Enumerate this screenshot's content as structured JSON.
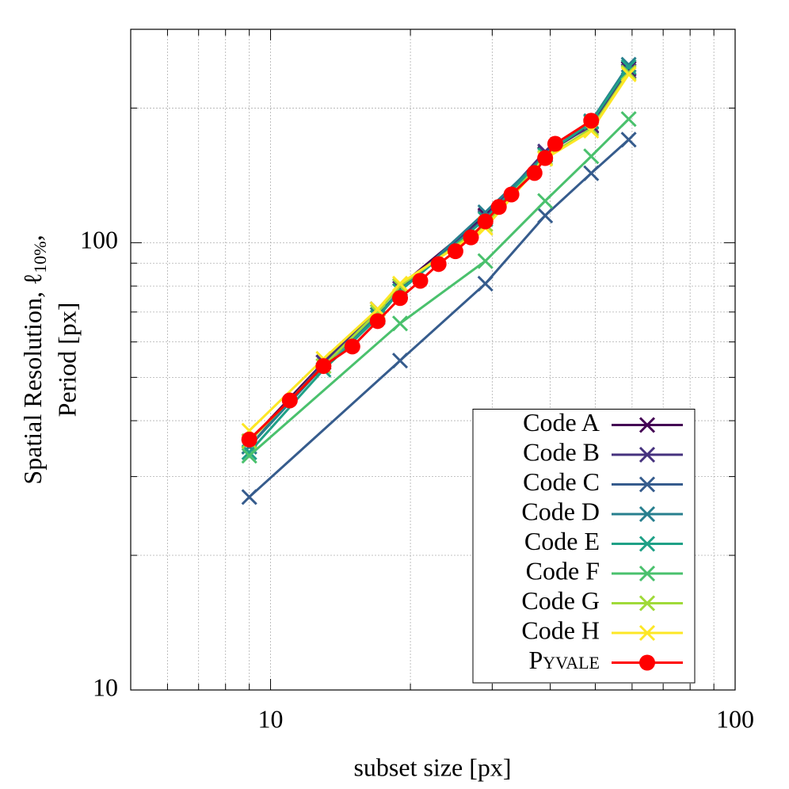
{
  "chart_data": {
    "type": "line",
    "x_label": "subset size [px]",
    "y_label": {
      "line1": "Spatial Resolution, ℓ",
      "subscript": "10%",
      "line1_end": ",",
      "line2": "Period [px]"
    },
    "log_x": true,
    "log_y": true,
    "grid": true,
    "xlim": [
      5,
      100
    ],
    "ylim": [
      10,
      300
    ],
    "xticks": [
      10,
      100
    ],
    "yticks": [
      10,
      100
    ],
    "xminor_ticks": [
      6,
      7,
      8,
      9,
      20,
      30,
      40,
      50,
      60,
      70,
      80,
      90
    ],
    "yminor_ticks": [
      20,
      30,
      40,
      50,
      60,
      70,
      80,
      90,
      200
    ],
    "legend_position": "lower right",
    "series": [
      {
        "name": "Code A",
        "color": "#440154",
        "marker": "x",
        "x": [
          9,
          13,
          17,
          19,
          29,
          39,
          49,
          59
        ],
        "values": [
          36,
          54,
          71,
          80,
          115,
          158,
          183,
          245
        ]
      },
      {
        "name": "Code B",
        "color": "#46327e",
        "marker": "x",
        "x": [
          9,
          13,
          17,
          19,
          29,
          39,
          49,
          59
        ],
        "values": [
          35,
          54,
          71,
          79,
          114,
          160,
          182,
          242
        ]
      },
      {
        "name": "Code C",
        "color": "#365c8d",
        "marker": "x",
        "x": [
          9,
          19,
          29,
          39,
          49,
          59
        ],
        "values": [
          27,
          54.5,
          81,
          115,
          143,
          170
        ]
      },
      {
        "name": "Code D",
        "color": "#277f8e",
        "marker": "x",
        "x": [
          9,
          13,
          17,
          19,
          29,
          39,
          49,
          59
        ],
        "values": [
          35,
          53,
          69,
          78,
          117,
          157,
          187,
          250
        ]
      },
      {
        "name": "Code E",
        "color": "#1fa187",
        "marker": "x",
        "x": [
          9,
          13,
          17,
          19,
          29,
          39,
          49,
          59
        ],
        "values": [
          34,
          52,
          68,
          78,
          113,
          157,
          186,
          247
        ]
      },
      {
        "name": "Code F",
        "color": "#4ac16d",
        "marker": "x",
        "x": [
          9,
          19,
          29,
          39,
          49,
          59
        ],
        "values": [
          33.4,
          66,
          91,
          124,
          156,
          189
        ]
      },
      {
        "name": "Code G",
        "color": "#a0da39",
        "marker": "x",
        "x": [
          9,
          13,
          17,
          19,
          29,
          39,
          49,
          59
        ],
        "values": [
          36,
          53,
          70,
          80,
          110,
          155,
          180,
          240
        ]
      },
      {
        "name": "Code H",
        "color": "#fde725",
        "marker": "x",
        "x": [
          9,
          13,
          17,
          19,
          29,
          39,
          49,
          59
        ],
        "values": [
          38,
          55,
          71,
          81,
          108,
          154,
          178,
          238
        ]
      },
      {
        "name": "Pyvale",
        "color": "#ff0000",
        "marker": "o",
        "x": [
          9,
          11,
          13,
          15,
          17,
          19,
          21,
          23,
          25,
          27,
          29,
          31,
          33,
          37,
          39,
          41,
          49
        ],
        "values": [
          36.3,
          44.4,
          53,
          58.6,
          66.8,
          75.2,
          82.2,
          89.6,
          95.7,
          102.8,
          111.6,
          120.2,
          128.2,
          143.2,
          154.6,
          166.4,
          187.4
        ]
      }
    ]
  }
}
